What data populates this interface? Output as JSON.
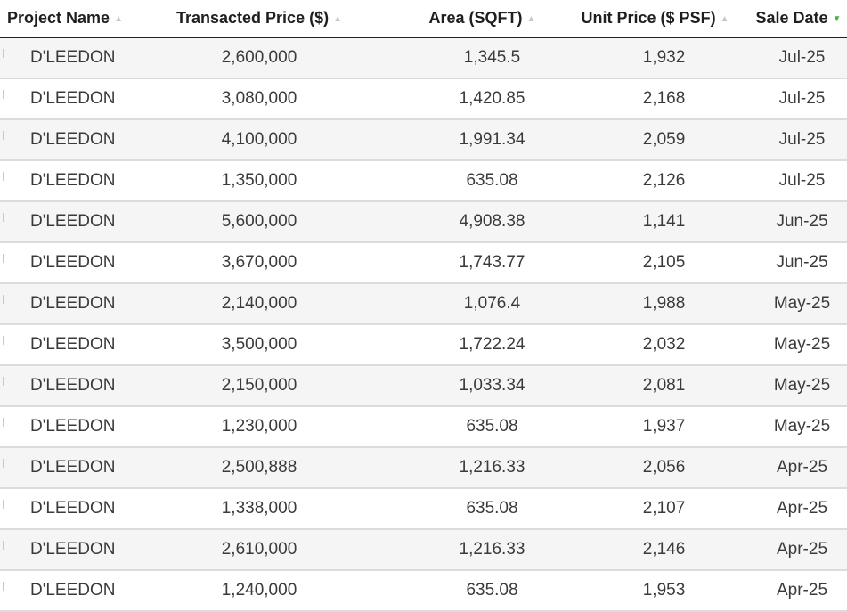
{
  "table": {
    "headers": [
      {
        "label": "Project Name",
        "sort": "none"
      },
      {
        "label": "Transacted Price ($)",
        "sort": "none"
      },
      {
        "label": "Area (SQFT)",
        "sort": "none"
      },
      {
        "label": "Unit Price ($ PSF)",
        "sort": "none"
      },
      {
        "label": "Sale Date",
        "sort": "descending"
      }
    ],
    "sort_arrow_glyph": "▲",
    "sort_active_glyph": "▼",
    "colors": {
      "header_text": "#1f1f1f",
      "inactive_arrow": "#c6c6c6",
      "active_arrow": "#4caf50",
      "stripe": "#f5f5f5",
      "row_border": "#dcdcdc"
    },
    "rows": [
      [
        "D'LEEDON",
        "2,600,000",
        "1,345.5",
        "1,932",
        "Jul-25"
      ],
      [
        "D'LEEDON",
        "3,080,000",
        "1,420.85",
        "2,168",
        "Jul-25"
      ],
      [
        "D'LEEDON",
        "4,100,000",
        "1,991.34",
        "2,059",
        "Jul-25"
      ],
      [
        "D'LEEDON",
        "1,350,000",
        "635.08",
        "2,126",
        "Jul-25"
      ],
      [
        "D'LEEDON",
        "5,600,000",
        "4,908.38",
        "1,141",
        "Jun-25"
      ],
      [
        "D'LEEDON",
        "3,670,000",
        "1,743.77",
        "2,105",
        "Jun-25"
      ],
      [
        "D'LEEDON",
        "2,140,000",
        "1,076.4",
        "1,988",
        "May-25"
      ],
      [
        "D'LEEDON",
        "3,500,000",
        "1,722.24",
        "2,032",
        "May-25"
      ],
      [
        "D'LEEDON",
        "2,150,000",
        "1,033.34",
        "2,081",
        "May-25"
      ],
      [
        "D'LEEDON",
        "1,230,000",
        "635.08",
        "1,937",
        "May-25"
      ],
      [
        "D'LEEDON",
        "2,500,888",
        "1,216.33",
        "2,056",
        "Apr-25"
      ],
      [
        "D'LEEDON",
        "1,338,000",
        "635.08",
        "2,107",
        "Apr-25"
      ],
      [
        "D'LEEDON",
        "2,610,000",
        "1,216.33",
        "2,146",
        "Apr-25"
      ],
      [
        "D'LEEDON",
        "1,240,000",
        "635.08",
        "1,953",
        "Apr-25"
      ]
    ]
  }
}
